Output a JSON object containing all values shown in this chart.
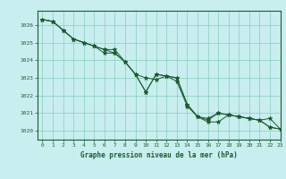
{
  "title": "Graphe pression niveau de la mer (hPa)",
  "background_color": "#c8eef0",
  "plot_bg_color": "#c8eef0",
  "grid_color": "#88ccbb",
  "line_color": "#1a5c2a",
  "marker_color": "#1a5c2a",
  "xlim": [
    -0.5,
    23
  ],
  "ylim": [
    1019.5,
    1026.8
  ],
  "yticks": [
    1020,
    1021,
    1022,
    1023,
    1024,
    1025,
    1026
  ],
  "xticks": [
    0,
    1,
    2,
    3,
    4,
    5,
    6,
    7,
    8,
    9,
    10,
    11,
    12,
    13,
    14,
    15,
    16,
    17,
    18,
    19,
    20,
    21,
    22,
    23
  ],
  "series": [
    [
      1026.3,
      1026.2,
      1025.7,
      1025.2,
      1025.0,
      1024.8,
      1024.6,
      1024.4,
      1023.9,
      1023.2,
      1023.0,
      1022.9,
      1023.1,
      1022.8,
      1021.4,
      1020.8,
      1020.6,
      1021.0,
      1020.9,
      1020.8,
      1020.7,
      1020.6,
      1020.2,
      1020.1
    ],
    [
      1026.3,
      1026.2,
      1025.7,
      1025.2,
      1025.0,
      1024.8,
      1024.6,
      1024.6,
      1023.9,
      1023.2,
      1022.2,
      1023.2,
      1023.1,
      1023.0,
      1021.5,
      1020.8,
      1020.7,
      1021.0,
      1020.9,
      1020.8,
      1020.7,
      1020.6,
      1020.2,
      1020.1
    ],
    [
      1026.3,
      1026.2,
      1025.7,
      1025.2,
      1025.0,
      1024.8,
      1024.4,
      1024.4,
      1023.9,
      1023.2,
      1022.2,
      1023.2,
      1023.1,
      1023.0,
      1021.5,
      1020.8,
      1020.5,
      1020.5,
      1020.9,
      1020.8,
      1020.7,
      1020.6,
      1020.7,
      1020.1
    ]
  ],
  "figsize": [
    3.2,
    2.0
  ],
  "dpi": 100
}
